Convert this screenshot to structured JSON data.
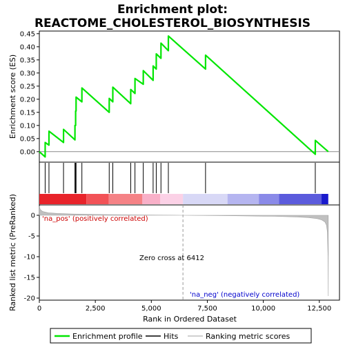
{
  "chart_data": {
    "type": "line",
    "title_line1": "Enrichment plot:",
    "title_line2": "REACTOME_CHOLESTEROL_BIOSYNTHESIS",
    "top_ylabel": "Enrichment score (ES)",
    "bottom_ylabel": "Ranked list metric (PreRanked)",
    "xlabel": "Rank in Ordered Dataset",
    "x_range": [
      0,
      13400
    ],
    "x_ticks": [
      0,
      2500,
      5000,
      7500,
      10000,
      12500
    ],
    "x_tick_labels": [
      "0",
      "2,500",
      "5,000",
      "7,500",
      "10,000",
      "12,500"
    ],
    "es_range": [
      -0.04,
      0.46
    ],
    "es_ticks": [
      0.0,
      0.05,
      0.1,
      0.15,
      0.2,
      0.25,
      0.3,
      0.35,
      0.4,
      0.45
    ],
    "es_tick_labels": [
      "0.00",
      "0.05",
      "0.10",
      "0.15",
      "0.20",
      "0.25",
      "0.30",
      "0.35",
      "0.40",
      "0.45"
    ],
    "metric_range": [
      -20.5,
      2.5
    ],
    "metric_ticks": [
      0,
      -5,
      -10,
      -15,
      -20
    ],
    "metric_tick_labels": [
      "0",
      "-5",
      "-10",
      "-15",
      "-20"
    ],
    "hits": [
      260,
      430,
      1080,
      1590,
      1620,
      1640,
      1900,
      3120,
      3280,
      4080,
      4270,
      4640,
      5080,
      5220,
      5430,
      5760,
      7420,
      12320
    ],
    "es_curve": {
      "x": [
        0,
        260,
        261,
        430,
        431,
        1080,
        1081,
        1590,
        1591,
        1620,
        1621,
        1640,
        1641,
        1900,
        1901,
        3120,
        3121,
        3280,
        3281,
        4080,
        4081,
        4270,
        4271,
        4640,
        4641,
        5080,
        5081,
        5220,
        5221,
        5430,
        5431,
        5760,
        5761,
        7420,
        7421,
        12320,
        12321,
        12900
      ],
      "y": [
        0.0,
        -0.02,
        0.035,
        0.025,
        0.078,
        0.035,
        0.085,
        0.045,
        0.1,
        0.1,
        0.155,
        0.155,
        0.208,
        0.19,
        0.243,
        0.15,
        0.203,
        0.19,
        0.246,
        0.183,
        0.237,
        0.222,
        0.279,
        0.257,
        0.309,
        0.272,
        0.327,
        0.315,
        0.373,
        0.356,
        0.414,
        0.385,
        0.441,
        0.315,
        0.368,
        -0.01,
        0.043,
        0.0
      ]
    },
    "metric_curve": {
      "x": [
        0,
        40,
        150,
        400,
        800,
        1500,
        2500,
        4000,
        6412,
        8500,
        10500,
        11500,
        12000,
        12400,
        12600,
        12750,
        12820,
        12860,
        12890,
        12900
      ],
      "y": [
        2.2,
        1.4,
        0.9,
        0.6,
        0.45,
        0.3,
        0.2,
        0.1,
        0.0,
        -0.1,
        -0.25,
        -0.4,
        -0.55,
        -0.8,
        -1.1,
        -1.6,
        -2.4,
        -4.0,
        -10.0,
        -19.5
      ]
    },
    "zero_cross_label": "Zero cross at 6412",
    "zero_cross_x": 6412,
    "pos_label": "'na_pos' (positively correlated)",
    "neg_label": "'na_neg' (negatively correlated)",
    "heatmap_segments": [
      {
        "start": 0,
        "end": 2100,
        "color": "#e8232a"
      },
      {
        "start": 2100,
        "end": 3100,
        "color": "#f25257"
      },
      {
        "start": 3100,
        "end": 4600,
        "color": "#f58286"
      },
      {
        "start": 4600,
        "end": 5400,
        "color": "#f8b0c8"
      },
      {
        "start": 5400,
        "end": 6412,
        "color": "#fbd1e6"
      },
      {
        "start": 6412,
        "end": 8400,
        "color": "#d8d8f6"
      },
      {
        "start": 8400,
        "end": 9800,
        "color": "#b5b5f0"
      },
      {
        "start": 9800,
        "end": 10700,
        "color": "#8a8ae8"
      },
      {
        "start": 10700,
        "end": 12600,
        "color": "#5b5bdc"
      },
      {
        "start": 12600,
        "end": 12900,
        "color": "#1a1acc"
      }
    ],
    "legend": {
      "enrichment_profile": "Enrichment profile",
      "hits": "Hits",
      "ranking_metric": "Ranking metric scores"
    },
    "colors": {
      "es_line": "#00e600",
      "hit_line": "#000000",
      "metric_fill": "#c0c0c0",
      "pos_text": "#cc0000",
      "neg_text": "#0000cc"
    }
  }
}
